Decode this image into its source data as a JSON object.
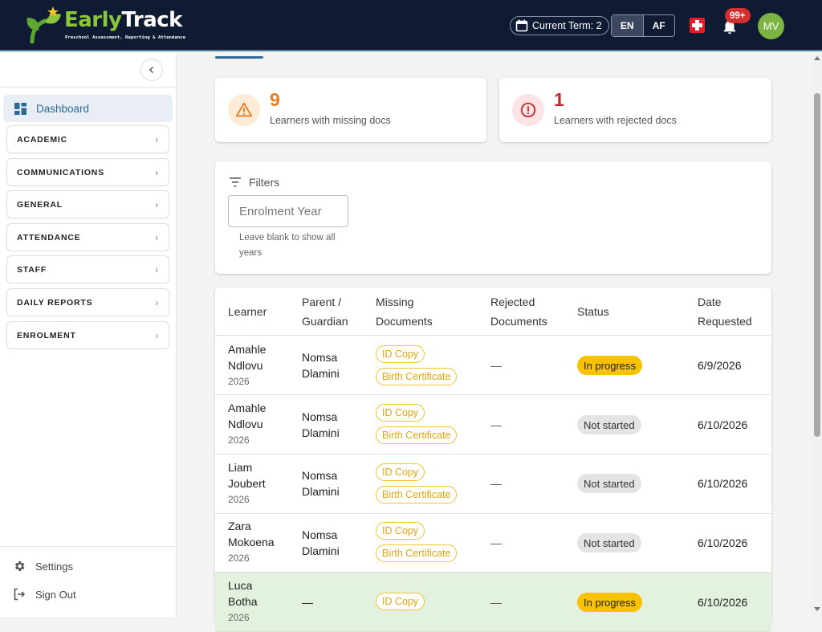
{
  "header": {
    "brand_early": "Early",
    "brand_track": "Track",
    "brand_sub": "Preschool Assessment, Reporting & Attendance",
    "term_label": "Current Term: 2",
    "lang_en": "EN",
    "lang_af": "AF",
    "notif_count": "99+",
    "avatar_initials": "MV"
  },
  "sidebar": {
    "dashboard": "Dashboard",
    "items": [
      "ACADEMIC",
      "COMMUNICATIONS",
      "GENERAL",
      "ATTENDANCE",
      "STAFF",
      "DAILY REPORTS",
      "ENROLMENT"
    ],
    "settings": "Settings",
    "sign_out": "Sign Out"
  },
  "stats": {
    "missing_count": "9",
    "missing_label": "Learners with missing docs",
    "rejected_count": "1",
    "rejected_label": "Learners with rejected docs"
  },
  "filters": {
    "title": "Filters",
    "year_placeholder": "Enrolment Year",
    "help": "Leave blank to show all years"
  },
  "table": {
    "headers": {
      "learner": "Learner",
      "parent_1": "Parent /",
      "parent_2": "Guardian",
      "missing_1": "Missing",
      "missing_2": "Documents",
      "rejected_1": "Rejected",
      "rejected_2": "Documents",
      "status": "Status",
      "date_1": "Date",
      "date_2": "Requested"
    },
    "rows": [
      {
        "first": "Amahle",
        "last": "Ndlovu",
        "year": "2026",
        "parent_first": "Nomsa",
        "parent_last": "Dlamini",
        "doc1": "ID Copy",
        "doc2": "Birth Certificate",
        "rejected": "—",
        "status": "In progress",
        "date": "6/9/2026"
      },
      {
        "first": "Amahle",
        "last": "Ndlovu",
        "year": "2026",
        "parent_first": "Nomsa",
        "parent_last": "Dlamini",
        "doc1": "ID Copy",
        "doc2": "Birth Certificate",
        "rejected": "—",
        "status": "Not started",
        "date": "6/10/2026"
      },
      {
        "first": "Liam",
        "last": "Joubert",
        "year": "2026",
        "parent_first": "Nomsa",
        "parent_last": "Dlamini",
        "doc1": "ID Copy",
        "doc2": "Birth Certificate",
        "rejected": "—",
        "status": "Not started",
        "date": "6/10/2026"
      },
      {
        "first": "Zara",
        "last": "Mokoena",
        "year": "2026",
        "parent_first": "Nomsa",
        "parent_last": "Dlamini",
        "doc1": "ID Copy",
        "doc2": "Birth Certificate",
        "rejected": "—",
        "status": "Not started",
        "date": "6/10/2026"
      },
      {
        "first": "Luca",
        "last": "Botha",
        "year": "2026",
        "parent_first": "—",
        "parent_last": "",
        "doc1": "ID Copy",
        "doc2": "",
        "rejected": "—",
        "status": "In progress",
        "date": "6/10/2026"
      }
    ]
  },
  "colors": {
    "header_bg": "#0f1b33",
    "accent": "#2c6a95",
    "warning": "#e67e22",
    "danger": "#c62828",
    "chip_border": "#f2c232",
    "in_progress": "#f8c200",
    "highlight_row": "#e3f1df"
  }
}
